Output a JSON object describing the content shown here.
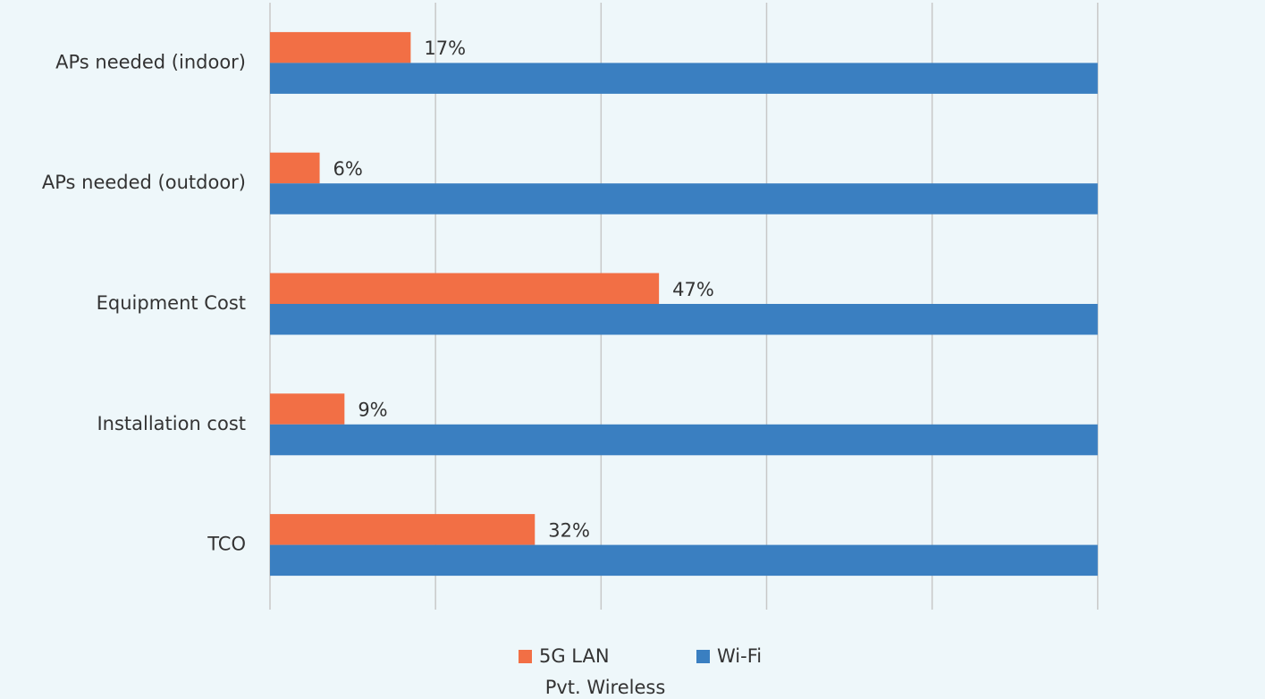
{
  "chart_data": {
    "type": "hbar",
    "categories": [
      "APs needed (indoor)",
      "APs needed (outdoor)",
      "Equipment Cost",
      "Installation cost",
      "TCO"
    ],
    "series": [
      {
        "name": "5G LAN",
        "color": "#f26f45",
        "values": [
          17,
          6,
          47,
          9,
          32
        ],
        "value_labels": [
          "17%",
          "6%",
          "47%",
          "9%",
          "32%"
        ]
      },
      {
        "name": "Wi-Fi",
        "color": "#3a7fc1",
        "values": [
          100,
          100,
          100,
          100,
          100
        ]
      }
    ],
    "xlabel": "Pvt. Wireless",
    "xlim": [
      0,
      120
    ],
    "xticks": [
      0,
      20,
      40,
      60,
      80,
      100
    ],
    "show_tick_labels": false,
    "grid": true,
    "legend": "bottom"
  }
}
